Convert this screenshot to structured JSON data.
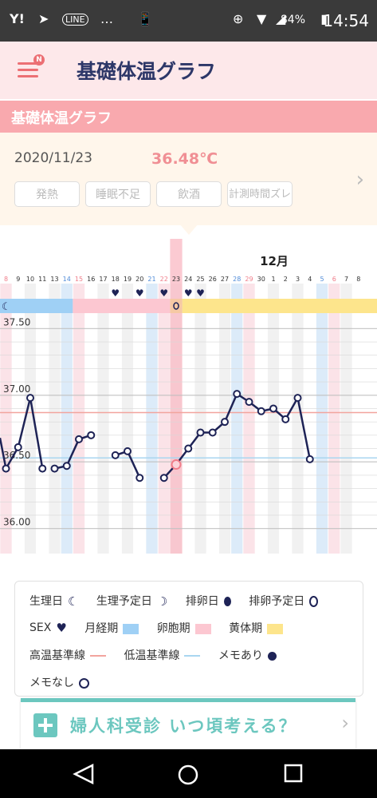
{
  "status_bar": {
    "left_icons": [
      "Y!",
      "paper-plane",
      "LINE",
      "…",
      "phone-nfc"
    ],
    "battery": "84%",
    "time": "14:54"
  },
  "header": {
    "title": "基礎体温グラフ",
    "badge": "N"
  },
  "section": {
    "title": "基礎体温グラフ"
  },
  "day_panel": {
    "date": "2020/11/23",
    "temperature": "36.48℃",
    "tags": [
      "発熱",
      "睡眠不足",
      "飲酒",
      "計測時間ズレ"
    ]
  },
  "chart_data": {
    "type": "line",
    "month_label": "12月",
    "x": [
      "8",
      "9",
      "10",
      "11",
      "13",
      "14",
      "15",
      "16",
      "17",
      "18",
      "19",
      "20",
      "21",
      "22",
      "23",
      "24",
      "25",
      "26",
      "27",
      "28",
      "29",
      "30",
      "1",
      "2",
      "3",
      "4",
      "5",
      "6",
      "7",
      "8"
    ],
    "y_ticks": [
      "37.50",
      "37.00",
      "36.50",
      "36.00"
    ],
    "ylim": [
      35.95,
      37.55
    ],
    "high_baseline": 36.87,
    "low_baseline": 36.53,
    "selected_day": "23",
    "hearts_on": [
      "18",
      "20",
      "22",
      "24",
      "25"
    ],
    "ovulation_mark_on": "23",
    "segments": [
      [
        {
          "x": "8",
          "y": 36.45
        },
        {
          "x": "9",
          "y": 36.61
        },
        {
          "x": "10",
          "y": 36.98
        },
        {
          "x": "11",
          "y": 36.45
        }
      ],
      [
        {
          "x": "13",
          "y": 36.45
        },
        {
          "x": "14",
          "y": 36.47
        },
        {
          "x": "15",
          "y": 36.67
        },
        {
          "x": "16",
          "y": 36.7
        }
      ],
      [
        {
          "x": "18",
          "y": 36.55
        },
        {
          "x": "19",
          "y": 36.58
        },
        {
          "x": "20",
          "y": 36.38
        }
      ],
      [
        {
          "x": "22",
          "y": 36.38
        },
        {
          "x": "23",
          "y": 36.48
        },
        {
          "x": "24",
          "y": 36.6
        },
        {
          "x": "25",
          "y": 36.72
        },
        {
          "x": "26",
          "y": 36.72
        },
        {
          "x": "27",
          "y": 36.8
        },
        {
          "x": "28",
          "y": 37.01
        },
        {
          "x": "29",
          "y": 36.95
        },
        {
          "x": "30",
          "y": 36.88
        },
        {
          "x": "1",
          "y": 36.9
        },
        {
          "x": "2",
          "y": 36.82
        },
        {
          "x": "3",
          "y": 36.98
        },
        {
          "x": "4",
          "y": 36.52
        }
      ]
    ],
    "phases": [
      {
        "name": "menstruation",
        "from": "8",
        "to": "14"
      },
      {
        "name": "follicular",
        "from": "15",
        "to": "22"
      },
      {
        "name": "luteal",
        "from": "24",
        "to": "8"
      }
    ],
    "colors": {
      "line": "#1e2356",
      "selected_band": "#f9b8c3",
      "menstruation": "#9fd0f5",
      "follicular": "#fcc7d1",
      "luteal": "#fde58c",
      "ovulation_day": "#f6c9a4",
      "high_baseline": "#f2a49e",
      "low_baseline": "#a9d6f0",
      "weekend_sat": "#4f8bd8",
      "weekend_sun": "#f07d8a"
    }
  },
  "legend": {
    "rows": [
      [
        {
          "label": "生理日",
          "symbol": "crescent"
        },
        {
          "label": "生理予定日",
          "symbol": "crescent-outline"
        },
        {
          "label": "排卵日",
          "symbol": "egg"
        },
        {
          "label": "排卵予定日",
          "symbol": "egg-outline"
        }
      ],
      [
        {
          "label": "SEX",
          "symbol": "heart"
        },
        {
          "label": "月経期",
          "symbol": "blue-square"
        },
        {
          "label": "卵胞期",
          "symbol": "pink-square"
        },
        {
          "label": "黄体期",
          "symbol": "yellow-square"
        }
      ],
      [
        {
          "label": "高温基準線",
          "symbol": "pink-line"
        },
        {
          "label": "低温基準線",
          "symbol": "blue-line"
        },
        {
          "label": "メモあり",
          "symbol": "filled-dot"
        }
      ],
      [
        {
          "label": "メモなし",
          "symbol": "open-dot"
        }
      ]
    ]
  },
  "banner": {
    "text": "婦人科受診 いつ頃考える？"
  },
  "navbar": {
    "buttons": [
      "back-icon",
      "home-icon",
      "recents-icon"
    ]
  }
}
